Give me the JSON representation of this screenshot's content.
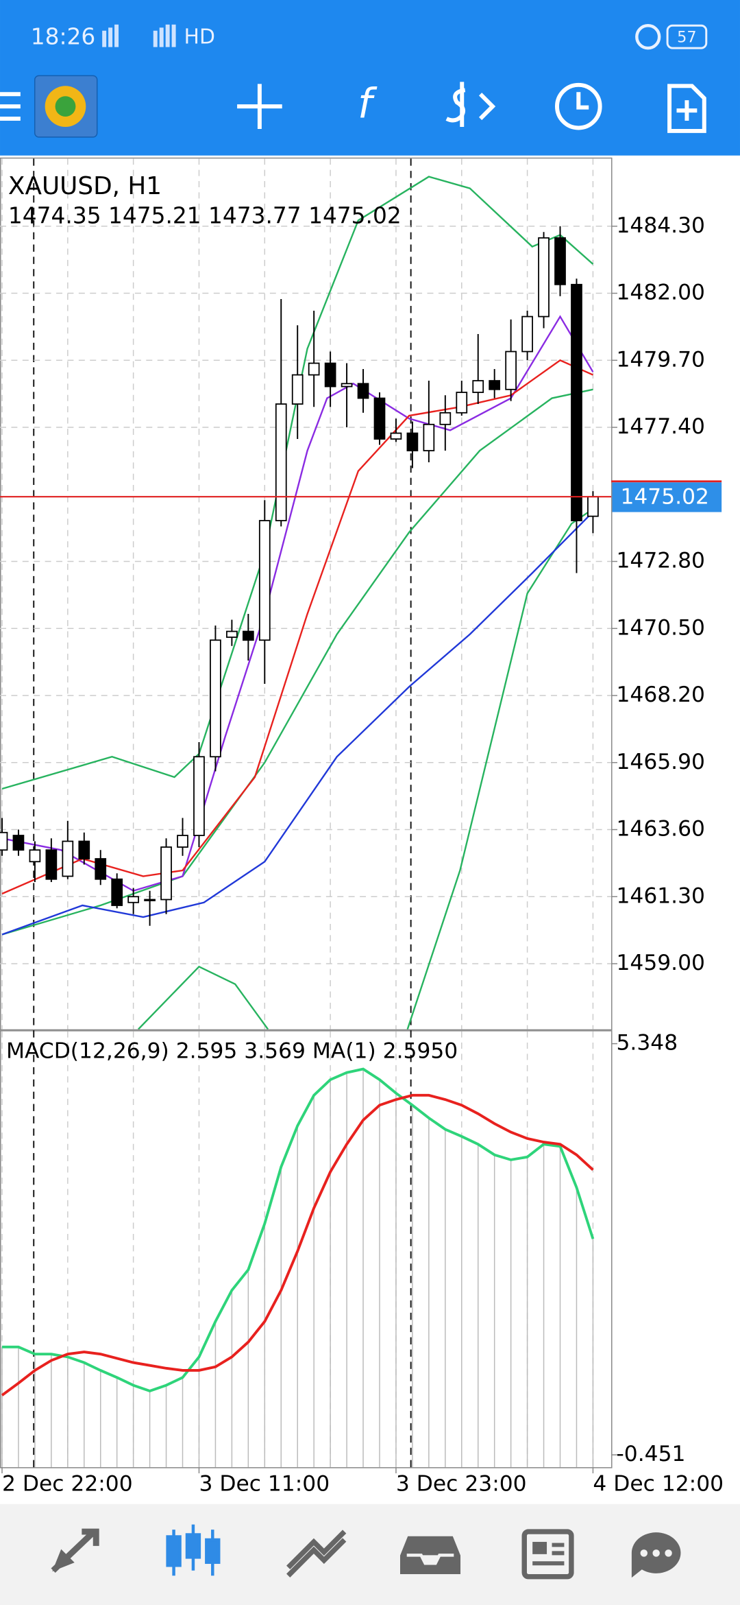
{
  "status_bar": {
    "time": "18:26",
    "network": "HD",
    "battery": "57"
  },
  "chart_data": [
    {
      "type": "candlestick",
      "title": "XAUUSD, H1",
      "subtitle": "1474.35 1475.21 1473.77 1475.02",
      "categories": [
        "2 Dec 22:00",
        null,
        null,
        null,
        null,
        null,
        null,
        null,
        null,
        null,
        null,
        null,
        "3 Dec 11:00",
        null,
        null,
        null,
        null,
        null,
        null,
        null,
        null,
        null,
        null,
        null,
        "3 Dec 23:00",
        null,
        null,
        null,
        null,
        null,
        null,
        null,
        null,
        null,
        null,
        null,
        "4 Dec 12:00"
      ],
      "open": [
        1462.9,
        1463.4,
        1462.5,
        1462.9,
        1462.0,
        1463.2,
        1462.6,
        1461.9,
        1461.1,
        1461.2,
        1461.2,
        1463.0,
        1463.4,
        1466.1,
        1470.2,
        1470.4,
        1470.1,
        1474.2,
        1478.2,
        1479.2,
        1479.6,
        1478.8,
        1478.9,
        1478.4,
        1477.0,
        1477.2,
        1476.6,
        1477.5,
        1477.9,
        1478.6,
        1479.0,
        1478.7,
        1480.0,
        1481.2,
        1483.9,
        1482.3,
        1474.35
      ],
      "high": [
        1464.0,
        1463.6,
        1463.2,
        1463.3,
        1463.9,
        1463.5,
        1462.9,
        1462.1,
        1461.6,
        1461.5,
        1463.3,
        1464.0,
        1466.6,
        1470.6,
        1470.8,
        1471.0,
        1474.9,
        1481.8,
        1480.9,
        1481.4,
        1480.0,
        1479.6,
        1479.4,
        1478.6,
        1477.7,
        1477.6,
        1479.0,
        1478.5,
        1479.0,
        1480.6,
        1479.4,
        1481.1,
        1481.4,
        1484.1,
        1484.3,
        1482.5,
        1475.21
      ],
      "low": [
        1462.7,
        1462.7,
        1461.8,
        1461.8,
        1461.9,
        1462.4,
        1461.7,
        1460.9,
        1460.7,
        1460.3,
        1460.7,
        1462.7,
        1463.0,
        1465.6,
        1469.9,
        1469.4,
        1468.6,
        1474.0,
        1477.0,
        1478.1,
        1478.1,
        1477.4,
        1477.9,
        1476.8,
        1476.9,
        1476.0,
        1476.2,
        1476.6,
        1477.8,
        1478.2,
        1478.4,
        1478.3,
        1479.7,
        1480.8,
        1481.9,
        1472.4,
        1473.77
      ],
      "close": [
        1463.5,
        1462.9,
        1462.9,
        1461.9,
        1463.2,
        1462.6,
        1461.9,
        1461.0,
        1461.3,
        1461.2,
        1463.0,
        1463.4,
        1466.1,
        1470.1,
        1470.4,
        1470.1,
        1474.2,
        1478.2,
        1479.2,
        1479.6,
        1478.8,
        1478.9,
        1478.4,
        1477.0,
        1477.2,
        1476.6,
        1477.5,
        1477.9,
        1478.6,
        1479.0,
        1478.7,
        1480.0,
        1481.2,
        1483.9,
        1482.3,
        1474.2,
        1475.02
      ],
      "ylim": [
        1456.75,
        1486.62
      ],
      "yticks": [
        {
          "value": 1484.3,
          "label": "1484.30"
        },
        {
          "value": 1482,
          "label": "1482.00"
        },
        {
          "value": 1479.7,
          "label": "1479.70"
        },
        {
          "value": 1477.4,
          "label": "1477.40"
        },
        {
          "value": 1472.8,
          "label": "1472.80"
        },
        {
          "value": 1470.5,
          "label": "1470.50"
        },
        {
          "value": 1468.2,
          "label": "1468.20"
        },
        {
          "value": 1465.9,
          "label": "1465.90"
        },
        {
          "value": 1463.6,
          "label": "1463.60"
        },
        {
          "value": 1461.3,
          "label": "1461.30"
        },
        {
          "value": 1459,
          "label": "1459.00"
        }
      ],
      "last_price": 1475.02,
      "series": [
        {
          "color": "#27b35f",
          "x": [
            0,
            6.7,
            10.5,
            12,
            16,
            18.6,
            21.7,
            26,
            28.5,
            32.3,
            34,
            36
          ],
          "values": [
            1465.0,
            1466.1,
            1465.4,
            1466.2,
            1473.1,
            1480.1,
            1484.5,
            1486.0,
            1485.6,
            1483.6,
            1484.0,
            1483.0
          ]
        },
        {
          "color": "#27b35f",
          "x": [
            0,
            6,
            11,
            16,
            20.4,
            24.8,
            29.1,
            33.5,
            36
          ],
          "values": [
            1460.0,
            1461.0,
            1462.0,
            1465.9,
            1470.3,
            1473.8,
            1476.6,
            1478.4,
            1478.7
          ]
        },
        {
          "color": "#27b35f",
          "x": [
            8.3,
            12,
            14.2,
            16.2,
            null,
            24.7,
            27.9,
            32,
            34.7,
            36
          ],
          "values": [
            1456.75,
            1458.9,
            1458.3,
            1456.75,
            null,
            1456.75,
            1462.2,
            1471.7,
            1474.1,
            1474.6
          ]
        },
        {
          "color": "#8a2be2",
          "x": [
            0,
            3.6,
            8,
            11,
            13.6,
            16,
            18.6,
            19.8,
            21.4,
            24.8,
            27.3,
            31,
            34,
            36
          ],
          "values": [
            1463.3,
            1462.9,
            1461.5,
            1462.0,
            1466.8,
            1471.0,
            1476.6,
            1478.4,
            1478.9,
            1477.7,
            1477.3,
            1478.4,
            1481.2,
            1479.3
          ]
        },
        {
          "color": "#e8211e",
          "x": [
            0,
            4.9,
            8.6,
            11,
            15.4,
            18.6,
            21.7,
            24.8,
            27.9,
            31,
            34,
            36
          ],
          "values": [
            1461.4,
            1462.6,
            1462.0,
            1462.2,
            1465.4,
            1471.0,
            1475.9,
            1477.8,
            1478.1,
            1478.5,
            1479.7,
            1479.2
          ]
        },
        {
          "color": "#2038d8",
          "x": [
            0,
            4.9,
            8.6,
            12.3,
            16,
            20.4,
            24.8,
            28.5,
            32.3,
            36
          ],
          "values": [
            1460.0,
            1461.0,
            1460.6,
            1461.1,
            1462.5,
            1466.1,
            1468.5,
            1470.3,
            1472.4,
            1474.5
          ]
        }
      ]
    },
    {
      "type": "macd",
      "title": "MACD(12,26,9) 2.595 3.569 MA(1) 2.5950",
      "ylim": [
        -0.625,
        5.522
      ],
      "yticks": [
        5.348,
        -0.451
      ],
      "series": [
        {
          "color": "#2ed47a",
          "values": [
            1.07,
            1.07,
            0.97,
            0.97,
            0.93,
            0.85,
            0.74,
            0.64,
            0.53,
            0.45,
            0.53,
            0.64,
            0.93,
            1.43,
            1.87,
            2.16,
            2.81,
            3.61,
            4.19,
            4.62,
            4.84,
            4.94,
            4.99,
            4.84,
            4.65,
            4.48,
            4.3,
            4.14,
            4.04,
            3.93,
            3.78,
            3.71,
            3.75,
            3.93,
            3.9,
            3.32,
            2.595
          ]
        },
        {
          "color": "#e8211e",
          "values": [
            0.39,
            0.56,
            0.74,
            0.88,
            0.97,
            1.0,
            0.97,
            0.91,
            0.85,
            0.81,
            0.77,
            0.74,
            0.74,
            0.79,
            0.93,
            1.14,
            1.43,
            1.87,
            2.42,
            3.03,
            3.54,
            3.93,
            4.27,
            4.48,
            4.56,
            4.62,
            4.62,
            4.56,
            4.48,
            4.36,
            4.22,
            4.1,
            4.01,
            3.96,
            3.93,
            3.78,
            3.569
          ]
        }
      ]
    }
  ]
}
